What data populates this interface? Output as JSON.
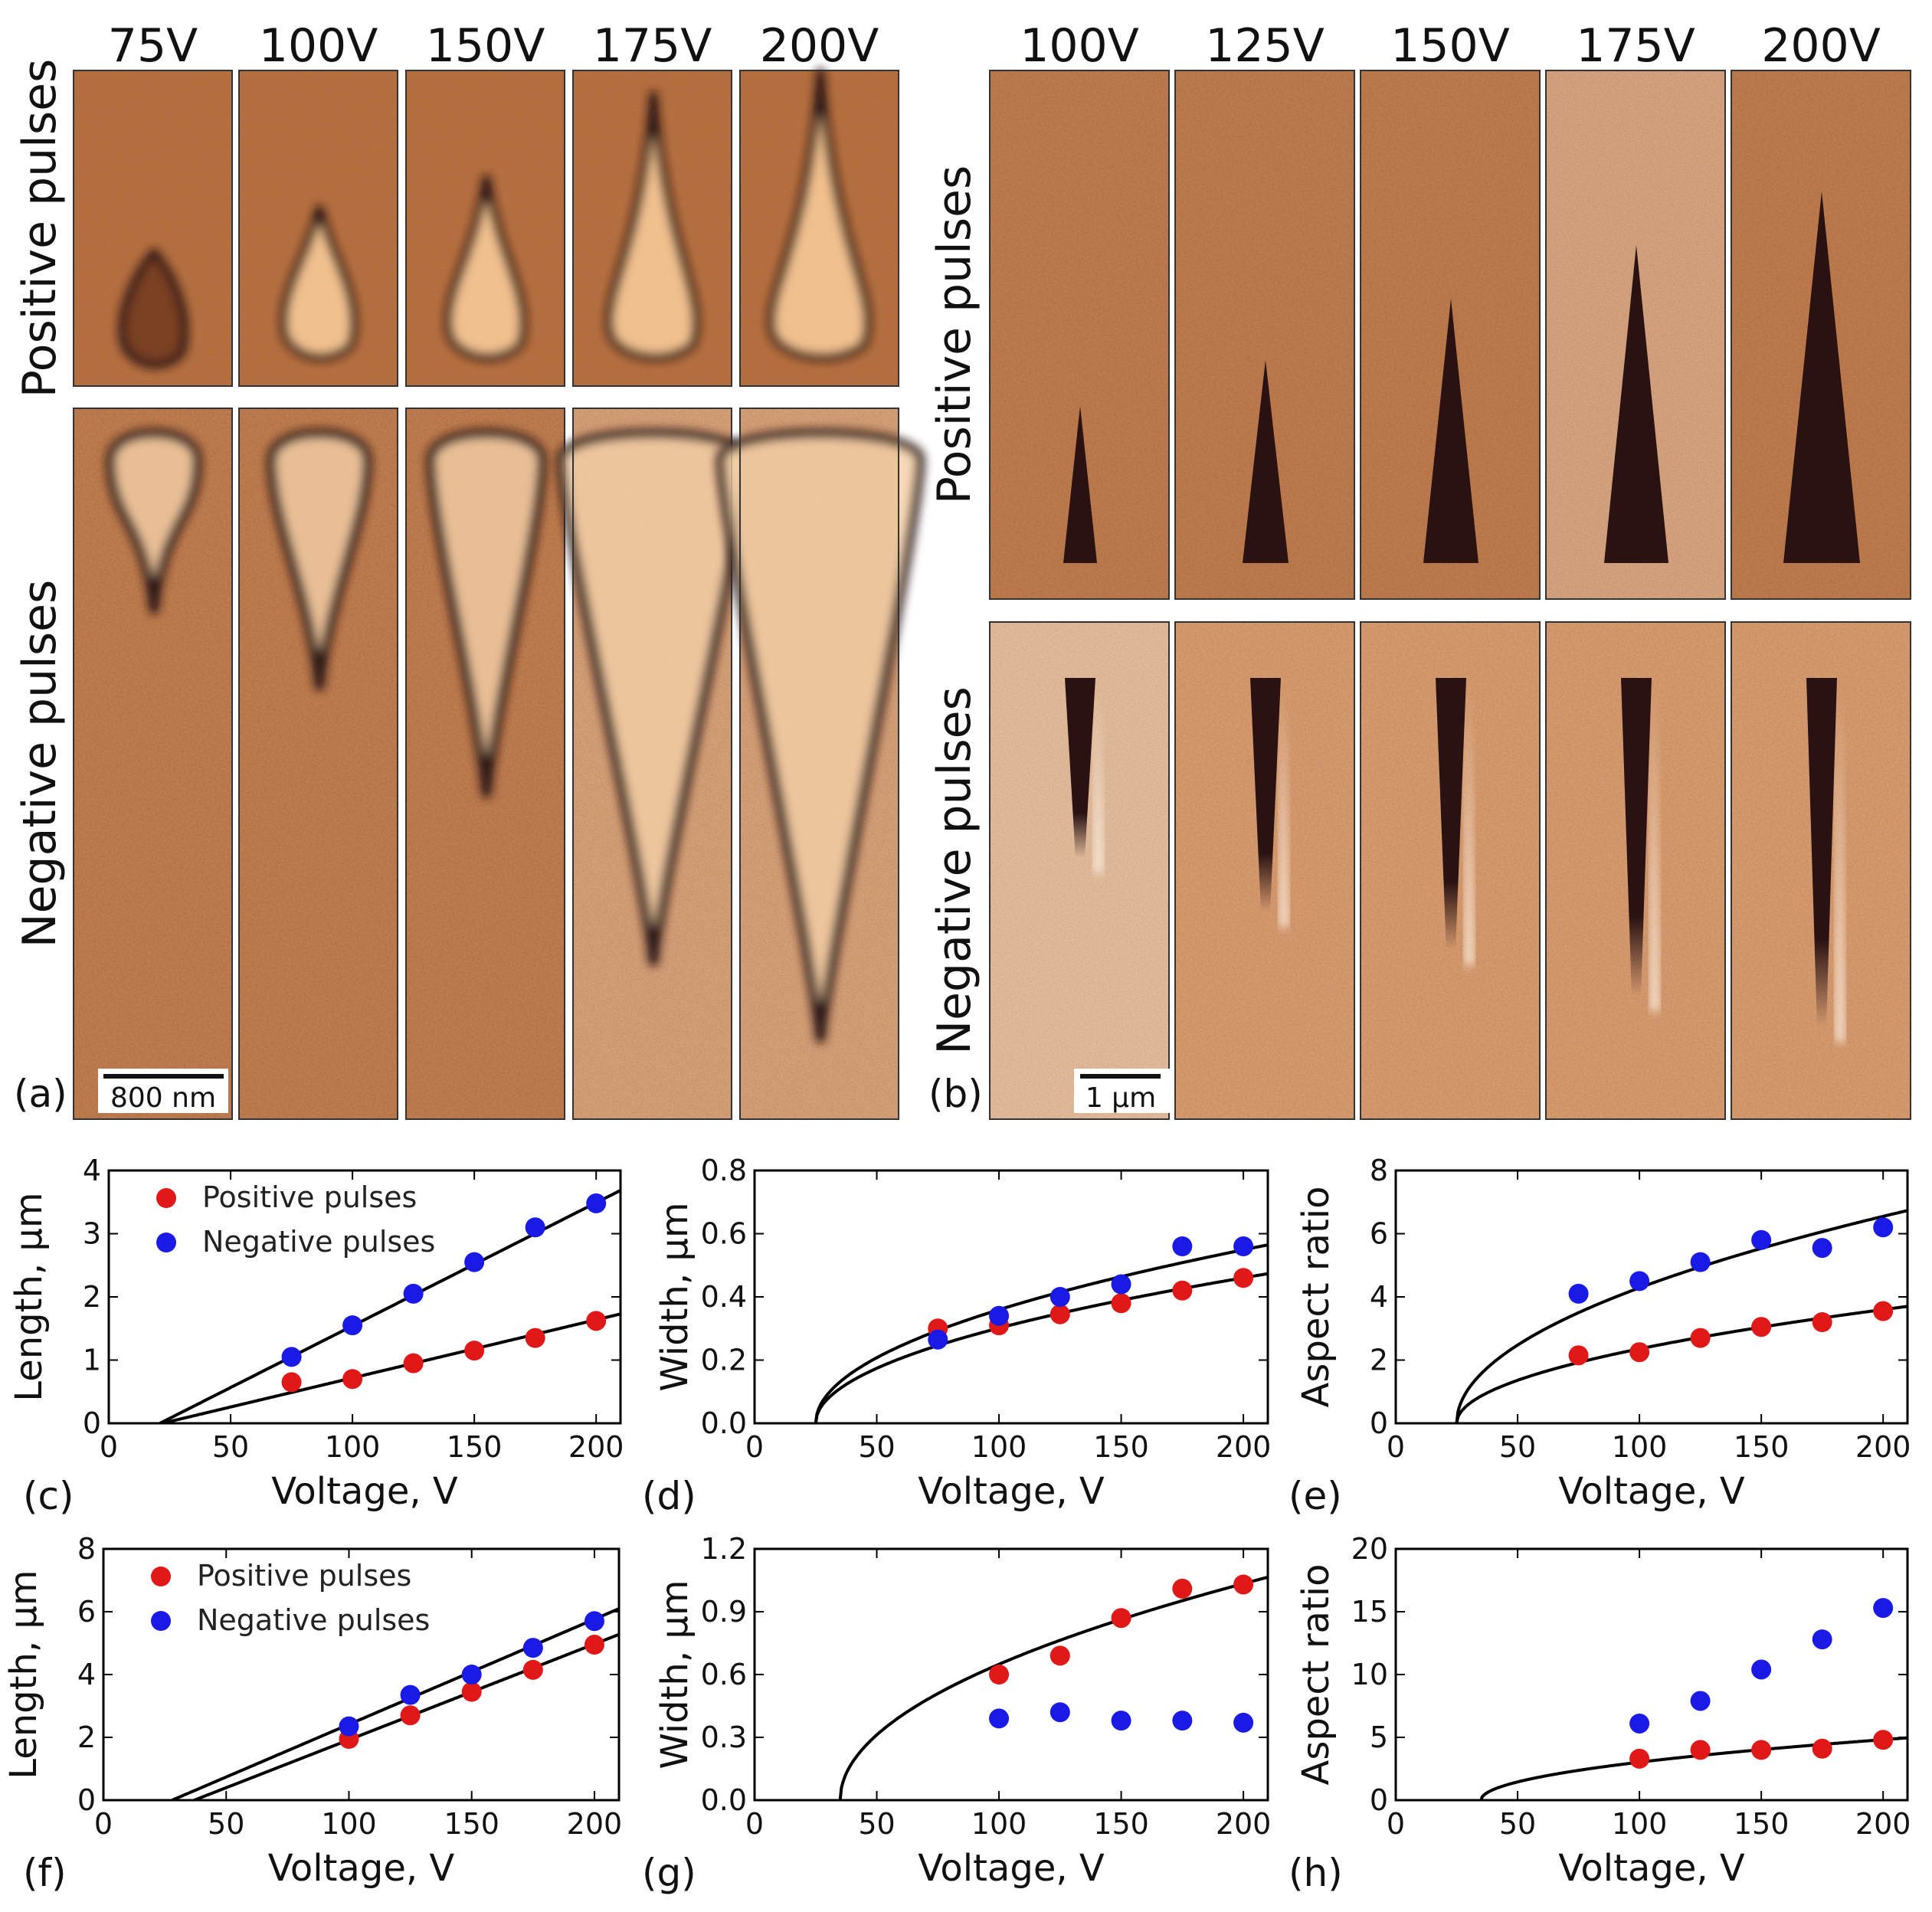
{
  "top_panels": [
    {
      "id": "a",
      "panel_label": "(a)",
      "columns": [
        "75V",
        "100V",
        "150V",
        "175V",
        "200V"
      ],
      "row_labels": [
        "Positive pulses",
        "Negative pulses"
      ],
      "scale_bar": "800 nm"
    },
    {
      "id": "b",
      "panel_label": "(b)",
      "columns": [
        "100V",
        "125V",
        "150V",
        "175V",
        "200V"
      ],
      "row_labels": [
        "Positive pulses",
        "Negative pulses"
      ],
      "scale_bar": "1 µm"
    }
  ],
  "colors": {
    "image_base": "#c8763f",
    "image_light": "#f3c8a2",
    "domain_dark": "#2a1212",
    "positive": "#e01818",
    "negative": "#1a1ae6",
    "fit": "#000000"
  },
  "chart_data": [
    {
      "id": "c",
      "panel_label": "(c)",
      "type": "scatter",
      "xlabel": "Voltage, V",
      "ylabel": "Length, µm",
      "xlim": [
        0,
        210
      ],
      "ylim": [
        0,
        4
      ],
      "xticks": [
        0,
        50,
        100,
        150,
        200
      ],
      "yticks": [
        0,
        1,
        2,
        3,
        4
      ],
      "legend": "top-left",
      "series": [
        {
          "name": "Positive pulses",
          "color": "#e01818",
          "x": [
            75,
            100,
            125,
            150,
            175,
            200
          ],
          "y": [
            0.65,
            0.7,
            0.95,
            1.15,
            1.35,
            1.62
          ]
        },
        {
          "name": "Negative pulses",
          "color": "#1a1ae6",
          "x": [
            75,
            100,
            125,
            150,
            175,
            200
          ],
          "y": [
            1.05,
            1.55,
            2.05,
            2.55,
            3.1,
            3.48
          ]
        }
      ],
      "fits": [
        {
          "form": "linear",
          "slope": 0.0092,
          "x0": 22
        },
        {
          "form": "linear",
          "slope": 0.0195,
          "x0": 21
        }
      ]
    },
    {
      "id": "d",
      "panel_label": "(d)",
      "type": "scatter",
      "xlabel": "Voltage, V",
      "ylabel": "Width, µm",
      "xlim": [
        0,
        210
      ],
      "ylim": [
        0,
        0.8
      ],
      "xticks": [
        0,
        50,
        100,
        150,
        200
      ],
      "yticks": [
        0.0,
        0.2,
        0.4,
        0.6,
        0.8
      ],
      "series": [
        {
          "color": "#e01818",
          "x": [
            75,
            100,
            125,
            150,
            175,
            200
          ],
          "y": [
            0.3,
            0.31,
            0.345,
            0.38,
            0.42,
            0.46
          ]
        },
        {
          "color": "#1a1ae6",
          "x": [
            75,
            100,
            125,
            150,
            175,
            200
          ],
          "y": [
            0.265,
            0.34,
            0.4,
            0.44,
            0.56,
            0.56
          ]
        }
      ],
      "fits": [
        {
          "form": "sqrt",
          "a": 0.0348,
          "x0": 25
        },
        {
          "form": "sqrt",
          "a": 0.0415,
          "x0": 25
        }
      ]
    },
    {
      "id": "e",
      "panel_label": "(e)",
      "type": "scatter",
      "xlabel": "Voltage, V",
      "ylabel": "Aspect ratio",
      "xlim": [
        0,
        210
      ],
      "ylim": [
        0,
        8
      ],
      "xticks": [
        0,
        50,
        100,
        150,
        200
      ],
      "yticks": [
        0,
        2,
        4,
        6,
        8
      ],
      "series": [
        {
          "color": "#e01818",
          "x": [
            75,
            100,
            125,
            150,
            175,
            200
          ],
          "y": [
            2.15,
            2.25,
            2.7,
            3.05,
            3.2,
            3.55
          ]
        },
        {
          "color": "#1a1ae6",
          "x": [
            75,
            100,
            125,
            150,
            175,
            200
          ],
          "y": [
            4.1,
            4.5,
            5.1,
            5.8,
            5.55,
            6.2
          ]
        }
      ],
      "fits": [
        {
          "form": "sqrt",
          "a": 0.272,
          "x0": 25
        },
        {
          "form": "sqrt",
          "a": 0.495,
          "x0": 25
        }
      ]
    },
    {
      "id": "f",
      "panel_label": "(f)",
      "type": "scatter",
      "xlabel": "Voltage, V",
      "ylabel": "Length, µm",
      "xlim": [
        0,
        210
      ],
      "ylim": [
        0,
        8
      ],
      "xticks": [
        0,
        50,
        100,
        150,
        200
      ],
      "yticks": [
        0,
        2,
        4,
        6,
        8
      ],
      "legend": "top-left",
      "series": [
        {
          "name": "Positive pulses",
          "color": "#e01818",
          "x": [
            100,
            125,
            150,
            175,
            200
          ],
          "y": [
            1.95,
            2.7,
            3.45,
            4.15,
            4.95
          ]
        },
        {
          "name": "Negative pulses",
          "color": "#1a1ae6",
          "x": [
            100,
            125,
            150,
            175,
            200
          ],
          "y": [
            2.35,
            3.35,
            4.0,
            4.85,
            5.7
          ]
        }
      ],
      "fits": [
        {
          "form": "linear",
          "slope": 0.0305,
          "x0": 37
        },
        {
          "form": "linear",
          "slope": 0.0335,
          "x0": 28
        }
      ]
    },
    {
      "id": "g",
      "panel_label": "(g)",
      "type": "scatter",
      "xlabel": "Voltage, V",
      "ylabel": "Width, µm",
      "xlim": [
        0,
        210
      ],
      "ylim": [
        0,
        1.2
      ],
      "xticks": [
        0,
        50,
        100,
        150,
        200
      ],
      "yticks": [
        0.0,
        0.3,
        0.6,
        0.9,
        1.2
      ],
      "series": [
        {
          "color": "#e01818",
          "x": [
            100,
            125,
            150,
            175,
            200
          ],
          "y": [
            0.6,
            0.69,
            0.87,
            1.01,
            1.03
          ]
        },
        {
          "color": "#1a1ae6",
          "x": [
            100,
            125,
            150,
            175,
            200
          ],
          "y": [
            0.39,
            0.42,
            0.38,
            0.38,
            0.37
          ]
        }
      ],
      "fits": [
        {
          "form": "sqrt",
          "a": 0.0805,
          "x0": 35
        }
      ]
    },
    {
      "id": "h",
      "panel_label": "(h)",
      "type": "scatter",
      "xlabel": "Voltage, V",
      "ylabel": "Aspect ratio",
      "xlim": [
        0,
        210
      ],
      "ylim": [
        0,
        20
      ],
      "xticks": [
        0,
        50,
        100,
        150,
        200
      ],
      "yticks": [
        0,
        5,
        10,
        15,
        20
      ],
      "series": [
        {
          "color": "#e01818",
          "x": [
            100,
            125,
            150,
            175,
            200
          ],
          "y": [
            3.3,
            4.0,
            4.0,
            4.1,
            4.8
          ]
        },
        {
          "color": "#1a1ae6",
          "x": [
            100,
            125,
            150,
            175,
            200
          ],
          "y": [
            6.1,
            7.9,
            10.4,
            12.8,
            15.3
          ]
        }
      ],
      "fits": [
        {
          "form": "sqrt",
          "a": 0.375,
          "x0": 35
        }
      ]
    }
  ]
}
